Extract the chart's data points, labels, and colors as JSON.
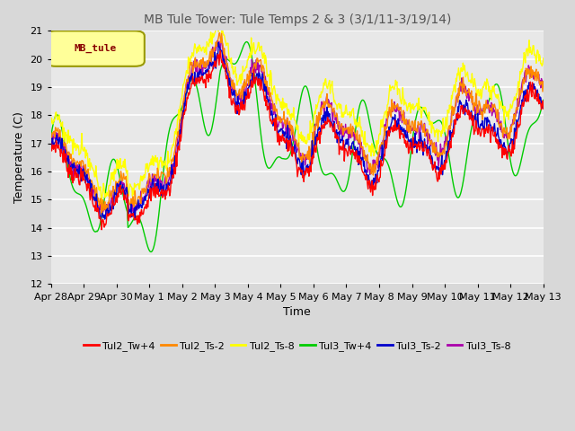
{
  "title": "MB Tule Tower: Tule Temps 2 & 3 (3/1/11-3/19/14)",
  "xlabel": "Time",
  "ylabel": "Temperature (C)",
  "ylim": [
    12.0,
    21.0
  ],
  "yticks": [
    12.0,
    13.0,
    14.0,
    15.0,
    16.0,
    17.0,
    18.0,
    19.0,
    20.0,
    21.0
  ],
  "xlabels": [
    "Apr 28",
    "Apr 29",
    "Apr 30",
    "May 1",
    "May 2",
    "May 3",
    "May 4",
    "May 5",
    "May 6",
    "May 7",
    "May 8",
    "May 9",
    "May 10",
    "May 11",
    "May 12",
    "May 13"
  ],
  "fig_bg": "#d8d8d8",
  "plot_bg": "#e8e8e8",
  "grid_color": "#ffffff",
  "legend_label": "MB_tule",
  "legend_bg": "#ffff99",
  "legend_border": "#999900",
  "series_colors": {
    "Tul2_Tw+4": "#ff0000",
    "Tul2_Ts-2": "#ff8800",
    "Tul2_Ts-8": "#ffff00",
    "Tul3_Tw+4": "#00cc00",
    "Tul3_Ts-2": "#0000cc",
    "Tul3_Ts-8": "#aa00aa"
  }
}
